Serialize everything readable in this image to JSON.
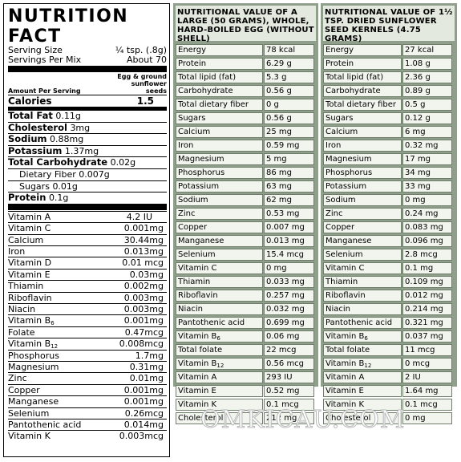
{
  "label": {
    "title_line1": "NUTRITION",
    "title_line2": "FACT",
    "serving_size_label": "Serving Size",
    "serving_size_value": "¼ tsp. (.8g)",
    "servings_per_mix_label": "Servings Per Mix",
    "servings_per_mix_value": "About 70",
    "column_header": "Egg & ground sunflower seeds",
    "amount_per_serving": "Amount Per Serving",
    "calories_label": "Calories",
    "calories_value": "1.5",
    "nutrients": [
      {
        "name": "Total Fat",
        "value": "0.11g",
        "indent": false
      },
      {
        "name": "Cholesterol",
        "value": "3mg",
        "indent": false
      },
      {
        "name": "Sodium",
        "value": "0.88mg",
        "indent": false
      },
      {
        "name": "Potassium",
        "value": "1.37mg",
        "indent": false
      },
      {
        "name": "Total Carbohydrate",
        "value": "0.02g",
        "indent": false
      },
      {
        "name": "Dietary Fiber",
        "value": "0.007g",
        "indent": true
      },
      {
        "name": "Sugars",
        "value": "0.01g",
        "indent": true
      },
      {
        "name": "Protein",
        "value": "0.1g",
        "indent": false
      }
    ],
    "vitamins": [
      {
        "name": "Vitamin A",
        "sub": "",
        "value": "4.2 IU"
      },
      {
        "name": "Vitamin C",
        "sub": "",
        "value": "0.001mg"
      },
      {
        "name": "Calcium",
        "sub": "",
        "value": "30.44mg"
      },
      {
        "name": "Iron",
        "sub": "",
        "value": "0.013mg"
      },
      {
        "name": "Vitamin D",
        "sub": "",
        "value": "0.01 mcg"
      },
      {
        "name": "Vitamin E",
        "sub": "",
        "value": "0.03mg"
      },
      {
        "name": "Thiamin",
        "sub": "",
        "value": "0.002mg"
      },
      {
        "name": "Riboflavin",
        "sub": "",
        "value": "0.003mg"
      },
      {
        "name": "Niacin",
        "sub": "",
        "value": "0.003mg"
      },
      {
        "name": "Vitamin B",
        "sub": "6",
        "value": "0.001mg"
      },
      {
        "name": "Folate",
        "sub": "",
        "value": "0.47mcg"
      },
      {
        "name": "Vitamin B",
        "sub": "12",
        "value": "0.008mcg"
      },
      {
        "name": "Phosphorus",
        "sub": "",
        "value": "1.7mg"
      },
      {
        "name": "Magnesium",
        "sub": "",
        "value": "0.31mg"
      },
      {
        "name": "Zinc",
        "sub": "",
        "value": "0.01mg"
      },
      {
        "name": "Copper",
        "sub": "",
        "value": "0.001mg"
      },
      {
        "name": "Manganese",
        "sub": "",
        "value": "0.001mg"
      },
      {
        "name": "Selenium",
        "sub": "",
        "value": "0.26mcg"
      },
      {
        "name": "Pantothenic acid",
        "sub": "",
        "value": "0.014mg"
      },
      {
        "name": "Vitamin K",
        "sub": "",
        "value": "0.003mcg"
      }
    ]
  },
  "egg_table": {
    "title": "NUTRITIONAL VALUE OF A LARGE (50 GRAMS), WHOLE, HARD-BOILED EGG (WITHOUT SHELL)",
    "rows": [
      {
        "name": "Energy",
        "sub": "",
        "value": "78 kcal"
      },
      {
        "name": "Protein",
        "sub": "",
        "value": "6.29 g"
      },
      {
        "name": "Total lipid (fat)",
        "sub": "",
        "value": "5.3 g"
      },
      {
        "name": "Carbohydrate",
        "sub": "",
        "value": "0.56 g"
      },
      {
        "name": "Total dietary fiber",
        "sub": "",
        "value": "0 g"
      },
      {
        "name": "Sugars",
        "sub": "",
        "value": "0.56 g"
      },
      {
        "name": "Calcium",
        "sub": "",
        "value": "25 mg"
      },
      {
        "name": "Iron",
        "sub": "",
        "value": "0.59 mg"
      },
      {
        "name": "Magnesium",
        "sub": "",
        "value": "5 mg"
      },
      {
        "name": "Phosphorus",
        "sub": "",
        "value": "86 mg"
      },
      {
        "name": "Potassium",
        "sub": "",
        "value": "63 mg"
      },
      {
        "name": "Sodium",
        "sub": "",
        "value": "62 mg"
      },
      {
        "name": "Zinc",
        "sub": "",
        "value": "0.53 mg"
      },
      {
        "name": "Copper",
        "sub": "",
        "value": "0.007 mg"
      },
      {
        "name": "Manganese",
        "sub": "",
        "value": "0.013 mg"
      },
      {
        "name": "Selenium",
        "sub": "",
        "value": "15.4 mcg"
      },
      {
        "name": "Vitamin C",
        "sub": "",
        "value": "0 mg"
      },
      {
        "name": "Thiamin",
        "sub": "",
        "value": "0.033 mg"
      },
      {
        "name": "Riboflavin",
        "sub": "",
        "value": "0.257 mg"
      },
      {
        "name": "Niacin",
        "sub": "",
        "value": "0.032 mg"
      },
      {
        "name": "Pantothenic acid",
        "sub": "",
        "value": "0.699 mg"
      },
      {
        "name": "Vitamin B",
        "sub": "6",
        "value": "0.06 mg"
      },
      {
        "name": "Total folate",
        "sub": "",
        "value": "22 mcg"
      },
      {
        "name": "Vitamin B",
        "sub": "12",
        "value": "0.56 mcg"
      },
      {
        "name": "Vitamin A",
        "sub": "",
        "value": "293 IU"
      },
      {
        "name": "Vitamin E",
        "sub": "",
        "value": "0.52 mg"
      },
      {
        "name": "Vitamin K",
        "sub": "",
        "value": "0.1 mcg"
      },
      {
        "name": "Cholesterol",
        "sub": "",
        "value": "212 mg"
      }
    ]
  },
  "seed_table": {
    "title": "NUTRITIONAL VALUE OF 1½ TSP. DRIED SUNFLOWER SEED KERNELS (4.75 GRAMS)",
    "rows": [
      {
        "name": "Energy",
        "sub": "",
        "value": "27 kcal"
      },
      {
        "name": "Protein",
        "sub": "",
        "value": "1.08 g"
      },
      {
        "name": "Total lipid (fat)",
        "sub": "",
        "value": "2.36 g"
      },
      {
        "name": "Carbohydrate",
        "sub": "",
        "value": "0.89 g"
      },
      {
        "name": "Total dietary fiber",
        "sub": "",
        "value": "0.5 g"
      },
      {
        "name": "Sugars",
        "sub": "",
        "value": "0.12 g"
      },
      {
        "name": "Calcium",
        "sub": "",
        "value": "6 mg"
      },
      {
        "name": "Iron",
        "sub": "",
        "value": "0.32 mg"
      },
      {
        "name": "Magnesium",
        "sub": "",
        "value": "17 mg"
      },
      {
        "name": "Phosphorus",
        "sub": "",
        "value": "34 mg"
      },
      {
        "name": "Potassium",
        "sub": "",
        "value": "33 mg"
      },
      {
        "name": "Sodium",
        "sub": "",
        "value": "0 mg"
      },
      {
        "name": "Zinc",
        "sub": "",
        "value": "0.24 mg"
      },
      {
        "name": "Copper",
        "sub": "",
        "value": "0.083 mg"
      },
      {
        "name": "Manganese",
        "sub": "",
        "value": "0.096 mg"
      },
      {
        "name": "Selenium",
        "sub": "",
        "value": "2.8 mcg"
      },
      {
        "name": "Vitamin C",
        "sub": "",
        "value": "0.1 mg"
      },
      {
        "name": "Thiamin",
        "sub": "",
        "value": "0.109 mg"
      },
      {
        "name": "Riboflavin",
        "sub": "",
        "value": "0.012 mg"
      },
      {
        "name": "Niacin",
        "sub": "",
        "value": "0.214 mg"
      },
      {
        "name": "Pantothenic acid",
        "sub": "",
        "value": "0.321 mg"
      },
      {
        "name": "Vitamin B",
        "sub": "6",
        "value": "0.037 mg"
      },
      {
        "name": "Total folate",
        "sub": "",
        "value": "11 mcg"
      },
      {
        "name": "Vitamin B",
        "sub": "12",
        "value": "0 mcg"
      },
      {
        "name": "Vitamin A",
        "sub": "",
        "value": "2 IU"
      },
      {
        "name": "Vitamin E",
        "sub": "",
        "value": "1.64 mg"
      },
      {
        "name": "Vitamin K",
        "sub": "",
        "value": "0.1 mcg"
      },
      {
        "name": "Cholesterol",
        "sub": "",
        "value": "0 mg"
      }
    ]
  },
  "watermark": "OMKICAU.COM"
}
